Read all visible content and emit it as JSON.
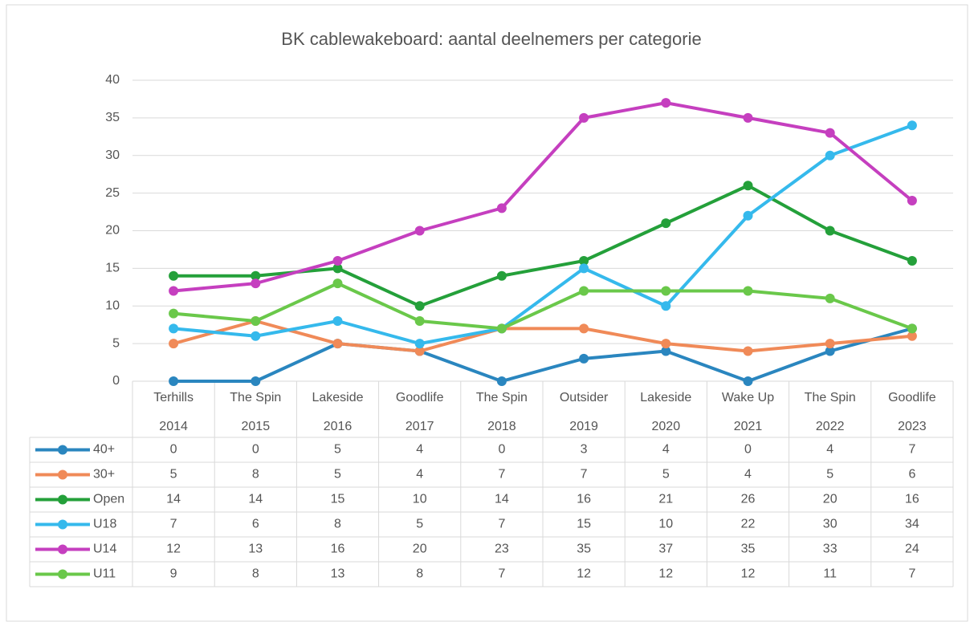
{
  "chart_data": {
    "type": "line",
    "title": "BK cablewakeboard: aantal deelnemers per categorie",
    "categories": [
      [
        "Terhills",
        "2014"
      ],
      [
        "The Spin",
        "2015"
      ],
      [
        "Lakeside",
        "2016"
      ],
      [
        "Goodlife",
        "2017"
      ],
      [
        "The Spin",
        "2018"
      ],
      [
        "Outsider",
        "2019"
      ],
      [
        "Lakeside",
        "2020"
      ],
      [
        "Wake Up",
        "2021"
      ],
      [
        "The Spin",
        "2022"
      ],
      [
        "Goodlife",
        "2023"
      ]
    ],
    "series": [
      {
        "name": "40+",
        "color": "#2a86bf",
        "values": [
          0,
          0,
          5,
          4,
          0,
          3,
          4,
          0,
          4,
          7
        ]
      },
      {
        "name": "30+",
        "color": "#f08a58",
        "values": [
          5,
          8,
          5,
          4,
          7,
          7,
          5,
          4,
          5,
          6
        ]
      },
      {
        "name": "Open",
        "color": "#24a03a",
        "values": [
          14,
          14,
          15,
          10,
          14,
          16,
          21,
          26,
          20,
          16
        ]
      },
      {
        "name": "U18",
        "color": "#35b9ec",
        "values": [
          7,
          6,
          8,
          5,
          7,
          15,
          10,
          22,
          30,
          34
        ]
      },
      {
        "name": "U14",
        "color": "#c53fbf",
        "values": [
          12,
          13,
          16,
          20,
          23,
          35,
          37,
          35,
          33,
          24
        ]
      },
      {
        "name": "U11",
        "color": "#6ac84a",
        "values": [
          9,
          8,
          13,
          8,
          7,
          12,
          12,
          12,
          11,
          7
        ]
      }
    ],
    "ylim": [
      0,
      40
    ],
    "yticks": [
      0,
      5,
      10,
      15,
      20,
      25,
      30,
      35,
      40
    ],
    "grid": true
  }
}
